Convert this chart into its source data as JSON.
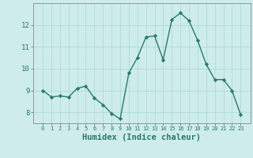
{
  "x": [
    0,
    1,
    2,
    3,
    4,
    5,
    6,
    7,
    8,
    9,
    10,
    11,
    12,
    13,
    14,
    15,
    16,
    17,
    18,
    19,
    20,
    21,
    22,
    23
  ],
  "y": [
    9.0,
    8.7,
    8.75,
    8.7,
    9.1,
    9.2,
    8.65,
    8.35,
    7.95,
    7.7,
    9.8,
    10.5,
    11.45,
    11.5,
    10.4,
    12.25,
    12.55,
    12.2,
    11.3,
    10.2,
    9.5,
    9.5,
    9.0,
    7.9
  ],
  "line_color": "#2a7a6a",
  "marker": "D",
  "marker_size": 2.2,
  "linewidth": 1.0,
  "xlabel": "Humidex (Indice chaleur)",
  "xlabel_fontsize": 7.5,
  "xlabel_fontweight": "bold",
  "background_color": "#ceecea",
  "grid_color": "#a8d8d4",
  "tick_color": "#2a7a6a",
  "ylim": [
    7.5,
    13.0
  ],
  "yticks": [
    8,
    9,
    10,
    11,
    12
  ],
  "xticks": [
    0,
    1,
    2,
    3,
    4,
    5,
    6,
    7,
    8,
    9,
    10,
    11,
    12,
    13,
    14,
    15,
    16,
    17,
    18,
    19,
    20,
    21,
    22,
    23
  ],
  "spine_color": "#888888"
}
